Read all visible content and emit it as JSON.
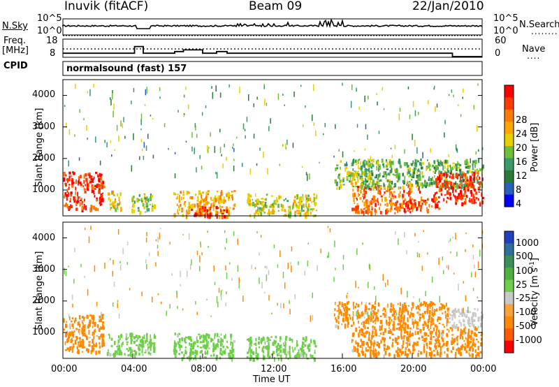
{
  "header": {
    "station": "Inuvik (fitACF)",
    "beam": "Beam 09",
    "date": "22/Jan/2010"
  },
  "nsky_panel": {
    "left_label": "N.Sky",
    "left_ticks": [
      "10^5",
      "10^0"
    ],
    "right_ticks": [
      "10^5",
      "10^0"
    ],
    "right_label": "N.Search"
  },
  "freq_panel": {
    "left_label_line1": "Freq.",
    "left_label_line2": "[MHz]",
    "left_ticks": [
      "18",
      "8"
    ],
    "right_ticks": [
      "60",
      "0"
    ],
    "right_label": "Nave",
    "cpid_label": "CPID",
    "cpid_text": "normalsound (fast) 157"
  },
  "power_panel": {
    "ylabel": "Slant Range [km]",
    "yticks": [
      "4000",
      "3000",
      "2000",
      "1000"
    ],
    "colorbar_label": "Power [dB]",
    "colorbar_ticks": [
      "28",
      "24",
      "20",
      "16",
      "12",
      "8",
      "4"
    ],
    "colorbar_colors": [
      "#ff0000",
      "#ff3a00",
      "#ff7a00",
      "#ffa500",
      "#e6d000",
      "#6fbf3a",
      "#3a9a6a",
      "#2c7a3a",
      "#2a5fbf",
      "#0000ff"
    ]
  },
  "velocity_panel": {
    "ylabel": "Slant Range [km]",
    "yticks": [
      "4000",
      "3000",
      "2000",
      "1000"
    ],
    "colorbar_label": "Velocity [m s",
    "colorbar_label_sup": "-1",
    "colorbar_label_end": "]",
    "colorbar_ticks": [
      "1000",
      "500",
      "100",
      "25",
      "-25",
      "-100",
      "-500",
      "-1000"
    ],
    "colorbar_colors": [
      "#2040c0",
      "#2f6fa0",
      "#3a8f5a",
      "#4fb040",
      "#6ed04a",
      "#c8c8c8",
      "#f7a23a",
      "#ff8a00",
      "#ff5a00",
      "#ff0000"
    ]
  },
  "xaxis": {
    "ticks": [
      "00:00",
      "04:00",
      "08:00",
      "12:00",
      "16:00",
      "20:00",
      "00:00"
    ],
    "label": "Time UT"
  },
  "chart_data": {
    "type": "heatmap",
    "title": "Inuvik (fitACF) Beam 09 22/Jan/2010",
    "xlabel": "Time UT",
    "ylabel": "Slant Range [km]",
    "xlim_hours": [
      0,
      24
    ],
    "ylim_km": [
      180,
      4500
    ],
    "freq_mhz_steps": [
      {
        "start": 0.0,
        "end": 4.1,
        "freq": 10
      },
      {
        "start": 4.1,
        "end": 4.6,
        "freq": 14
      },
      {
        "start": 4.6,
        "end": 6.4,
        "freq": 10
      },
      {
        "start": 6.4,
        "end": 6.9,
        "freq": 11
      },
      {
        "start": 6.9,
        "end": 8.0,
        "freq": 12
      },
      {
        "start": 8.0,
        "end": 8.8,
        "freq": 10
      },
      {
        "start": 8.8,
        "end": 9.4,
        "freq": 11
      },
      {
        "start": 9.4,
        "end": 22.3,
        "freq": 10
      },
      {
        "start": 22.3,
        "end": 24.0,
        "freq": 8
      }
    ],
    "nsky_level": "near 10^0 with spikes near 15:00-16:00",
    "power_echo_regions": [
      {
        "t0": 0.0,
        "t1": 2.3,
        "r0": 400,
        "r1": 1600,
        "db": 28
      },
      {
        "t0": 2.5,
        "t1": 3.3,
        "r0": 400,
        "r1": 1000,
        "db": 18
      },
      {
        "t0": 3.9,
        "t1": 5.2,
        "r0": 300,
        "r1": 900,
        "db": 14
      },
      {
        "t0": 6.3,
        "t1": 9.8,
        "r0": 200,
        "r1": 1000,
        "db": 20
      },
      {
        "t0": 7.3,
        "t1": 9.5,
        "r0": 200,
        "r1": 500,
        "db": 28
      },
      {
        "t0": 10.5,
        "t1": 14.5,
        "r0": 200,
        "r1": 900,
        "db": 16
      },
      {
        "t0": 15.5,
        "t1": 18.0,
        "r0": 1100,
        "r1": 2000,
        "db": 14
      },
      {
        "t0": 16.5,
        "t1": 20.5,
        "r0": 300,
        "r1": 1200,
        "db": 24
      },
      {
        "t0": 19.5,
        "t1": 21.5,
        "r0": 400,
        "r1": 750,
        "db": 28
      },
      {
        "t0": 17.0,
        "t1": 24.0,
        "r0": 1100,
        "r1": 2000,
        "db": 12
      },
      {
        "t0": 21.2,
        "t1": 24.0,
        "r0": 600,
        "r1": 1600,
        "db": 28
      }
    ],
    "velocity_echo_regions": [
      {
        "t0": 0.0,
        "t1": 2.3,
        "r0": 400,
        "r1": 1600,
        "v": -100
      },
      {
        "t0": 2.5,
        "t1": 5.2,
        "r0": 300,
        "r1": 1000,
        "v": 100
      },
      {
        "t0": 6.3,
        "t1": 9.8,
        "r0": 200,
        "r1": 1000,
        "v": 100
      },
      {
        "t0": 10.5,
        "t1": 14.5,
        "r0": 200,
        "r1": 900,
        "v": 100
      },
      {
        "t0": 15.5,
        "t1": 22.0,
        "r0": 1200,
        "r1": 2000,
        "v": -100
      },
      {
        "t0": 16.5,
        "t1": 24.0,
        "r0": 300,
        "r1": 1200,
        "v": -100
      },
      {
        "t0": 22.0,
        "t1": 24.0,
        "r0": 1200,
        "r1": 1800,
        "v": 25
      }
    ]
  }
}
